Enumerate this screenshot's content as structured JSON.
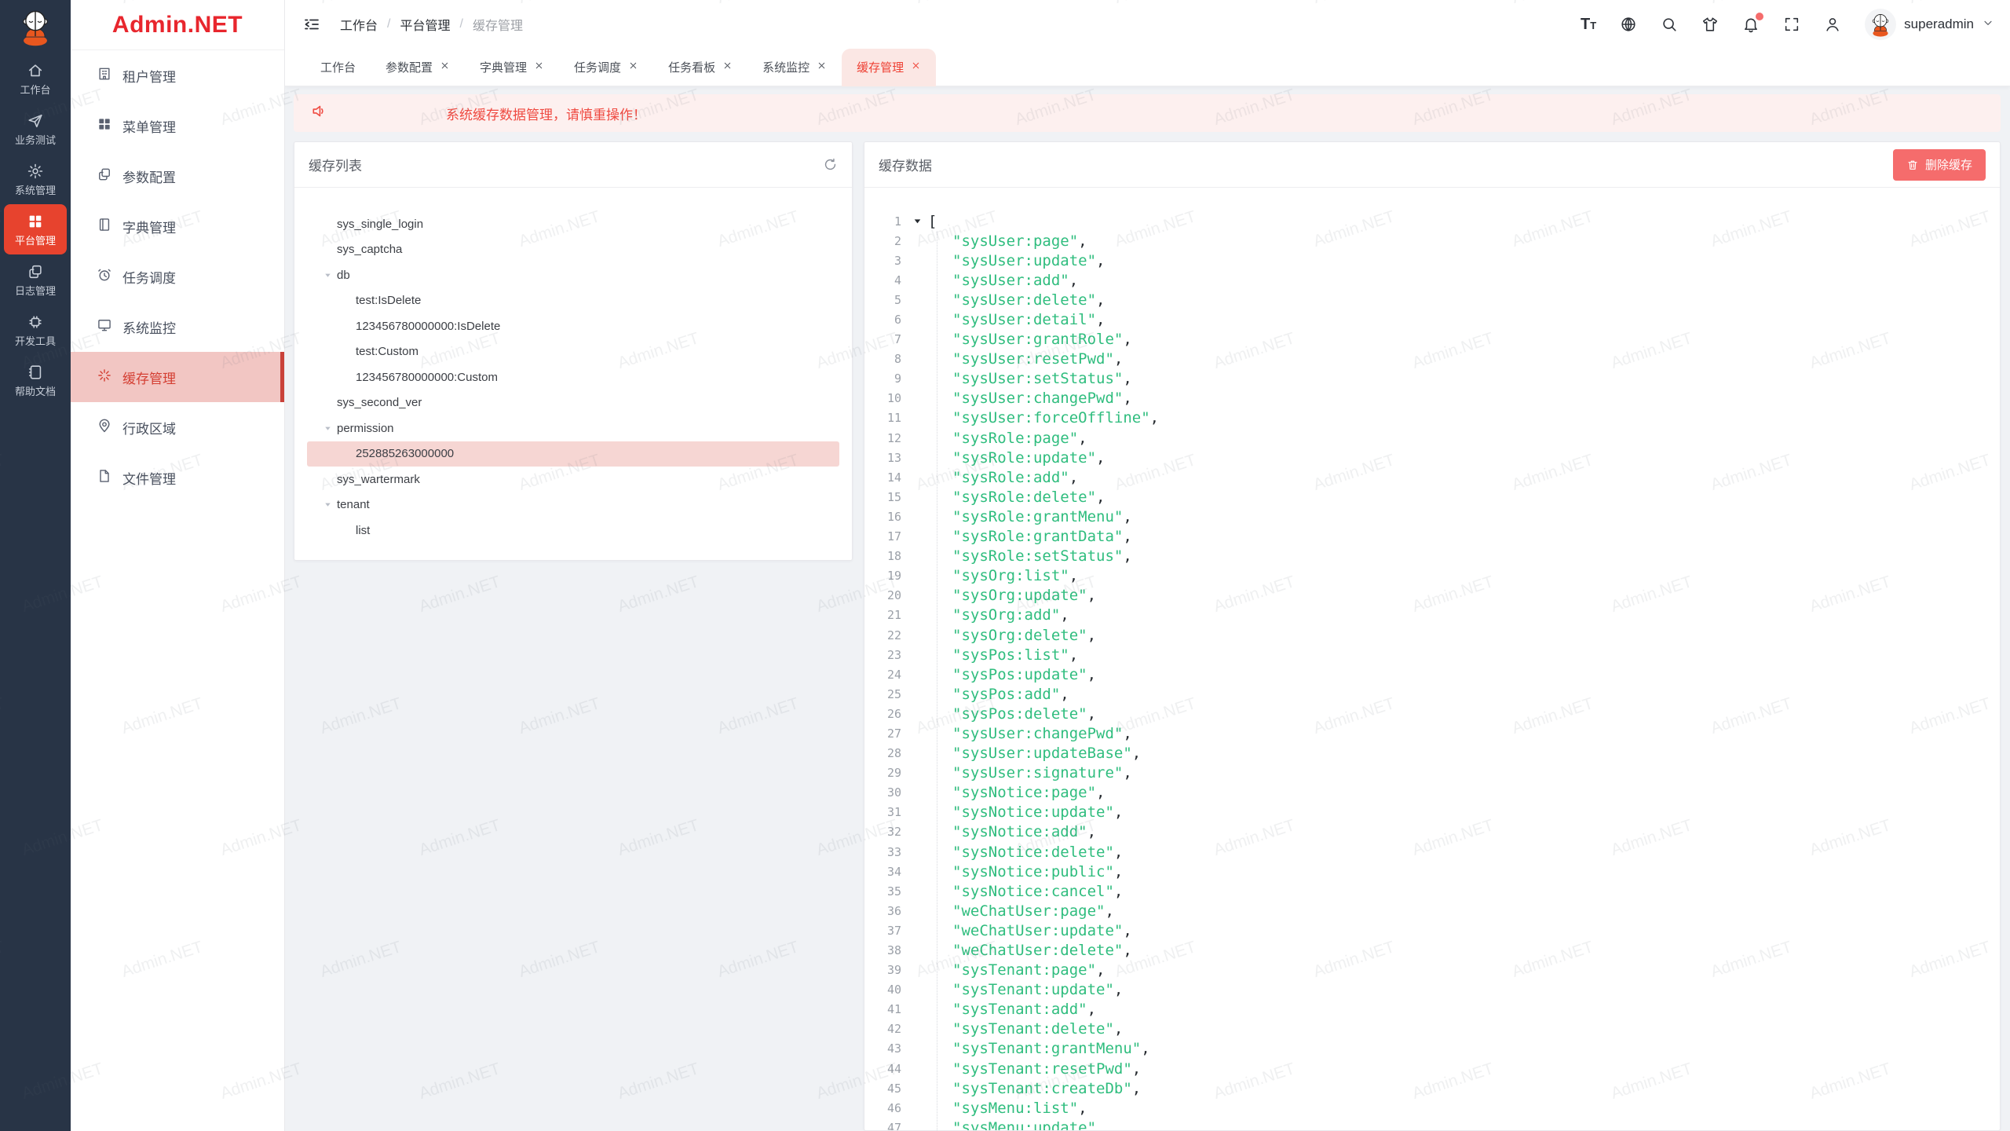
{
  "colors": {
    "rail_dark": "#283446",
    "brand_red": "#e7432e",
    "logo_text_red": "#e8262d",
    "active_sidebar_pink": "#f2c6c3",
    "active_tab_pink": "#fbe7e4",
    "selected_row_pink": "#f6d6d3",
    "danger_button": "#f56c6c",
    "alert_bg": "#fdf0ef",
    "alert_text": "#ef4a41",
    "json_string_green": "#2fbd7e"
  },
  "watermark": {
    "text": "Admin.NET"
  },
  "rail": {
    "items": [
      {
        "id": "workbench",
        "label": "工作台",
        "icon": "home",
        "active": false
      },
      {
        "id": "business-test",
        "label": "业务测试",
        "icon": "send",
        "active": false
      },
      {
        "id": "system-mgmt",
        "label": "系统管理",
        "icon": "gear",
        "active": false
      },
      {
        "id": "platform-mgmt",
        "label": "平台管理",
        "icon": "grid",
        "active": true
      },
      {
        "id": "log-mgmt",
        "label": "日志管理",
        "icon": "copy",
        "active": false
      },
      {
        "id": "dev-tools",
        "label": "开发工具",
        "icon": "chip",
        "active": false
      },
      {
        "id": "help-docs",
        "label": "帮助文档",
        "icon": "book",
        "active": false
      }
    ]
  },
  "sidebar": {
    "logo_text": "Admin.NET",
    "items": [
      {
        "id": "tenant-mgmt",
        "label": "租户管理",
        "icon": "building",
        "active": false
      },
      {
        "id": "menu-mgmt",
        "label": "菜单管理",
        "icon": "grid",
        "active": false
      },
      {
        "id": "param-config",
        "label": "参数配置",
        "icon": "copy",
        "active": false
      },
      {
        "id": "dict-mgmt",
        "label": "字典管理",
        "icon": "notebook",
        "active": false
      },
      {
        "id": "task-schedule",
        "label": "任务调度",
        "icon": "alarm",
        "active": false
      },
      {
        "id": "system-monitor",
        "label": "系统监控",
        "icon": "monitor",
        "active": false
      },
      {
        "id": "cache-mgmt",
        "label": "缓存管理",
        "icon": "spark",
        "active": true
      },
      {
        "id": "admin-region",
        "label": "行政区域",
        "icon": "pin",
        "active": false
      },
      {
        "id": "file-mgmt",
        "label": "文件管理",
        "icon": "doc",
        "active": false
      }
    ]
  },
  "topbar": {
    "breadcrumb": {
      "items": [
        "工作台",
        "平台管理",
        "缓存管理"
      ],
      "separator": "/"
    },
    "actions": [
      {
        "id": "font-size",
        "icon": "font-size",
        "badge": false
      },
      {
        "id": "language",
        "icon": "language",
        "badge": false
      },
      {
        "id": "search",
        "icon": "search",
        "badge": false
      },
      {
        "id": "theme",
        "icon": "shirt",
        "badge": false
      },
      {
        "id": "notifications",
        "icon": "bell",
        "badge": true
      },
      {
        "id": "fullscreen",
        "icon": "fullscreen",
        "badge": false
      },
      {
        "id": "profile",
        "icon": "person",
        "badge": false
      }
    ],
    "user": "superadmin"
  },
  "tabs": [
    {
      "label": "工作台",
      "closable": false,
      "active": false
    },
    {
      "label": "参数配置",
      "closable": true,
      "active": false
    },
    {
      "label": "字典管理",
      "closable": true,
      "active": false
    },
    {
      "label": "任务调度",
      "closable": true,
      "active": false
    },
    {
      "label": "任务看板",
      "closable": true,
      "active": false
    },
    {
      "label": "系统监控",
      "closable": true,
      "active": false
    },
    {
      "label": "缓存管理",
      "closable": true,
      "active": true
    }
  ],
  "alert": {
    "text": "系统缓存数据管理，请慎重操作！"
  },
  "cache_list": {
    "title": "缓存列表",
    "tree": [
      {
        "label": "sys_single_login",
        "level": 1,
        "expanded": false,
        "selected": false
      },
      {
        "label": "sys_captcha",
        "level": 1,
        "expanded": false,
        "selected": false
      },
      {
        "label": "db",
        "level": 1,
        "expanded": true,
        "selected": false
      },
      {
        "label": "test:IsDelete",
        "level": 2,
        "expanded": false,
        "selected": false
      },
      {
        "label": "123456780000000:IsDelete",
        "level": 2,
        "expanded": false,
        "selected": false
      },
      {
        "label": "test:Custom",
        "level": 2,
        "expanded": false,
        "selected": false
      },
      {
        "label": "123456780000000:Custom",
        "level": 2,
        "expanded": false,
        "selected": false
      },
      {
        "label": "sys_second_ver",
        "level": 1,
        "expanded": false,
        "selected": false
      },
      {
        "label": "permission",
        "level": 1,
        "expanded": true,
        "selected": false
      },
      {
        "label": "252885263000000",
        "level": 2,
        "expanded": false,
        "selected": true
      },
      {
        "label": "sys_wartermark",
        "level": 1,
        "expanded": false,
        "selected": false
      },
      {
        "label": "tenant",
        "level": 1,
        "expanded": true,
        "selected": false
      },
      {
        "label": "list",
        "level": 2,
        "expanded": false,
        "selected": false
      }
    ]
  },
  "cache_data": {
    "title": "缓存数据",
    "delete_button": "删除缓存",
    "json_open": "[",
    "values": [
      "sysUser:page",
      "sysUser:update",
      "sysUser:add",
      "sysUser:delete",
      "sysUser:detail",
      "sysUser:grantRole",
      "sysUser:resetPwd",
      "sysUser:setStatus",
      "sysUser:changePwd",
      "sysUser:forceOffline",
      "sysRole:page",
      "sysRole:update",
      "sysRole:add",
      "sysRole:delete",
      "sysRole:grantMenu",
      "sysRole:grantData",
      "sysRole:setStatus",
      "sysOrg:list",
      "sysOrg:update",
      "sysOrg:add",
      "sysOrg:delete",
      "sysPos:list",
      "sysPos:update",
      "sysPos:add",
      "sysPos:delete",
      "sysUser:changePwd",
      "sysUser:updateBase",
      "sysUser:signature",
      "sysNotice:page",
      "sysNotice:update",
      "sysNotice:add",
      "sysNotice:delete",
      "sysNotice:public",
      "sysNotice:cancel",
      "weChatUser:page",
      "weChatUser:update",
      "weChatUser:delete",
      "sysTenant:page",
      "sysTenant:update",
      "sysTenant:add",
      "sysTenant:delete",
      "sysTenant:grantMenu",
      "sysTenant:resetPwd",
      "sysTenant:createDb",
      "sysMenu:list",
      "sysMenu:update"
    ]
  }
}
